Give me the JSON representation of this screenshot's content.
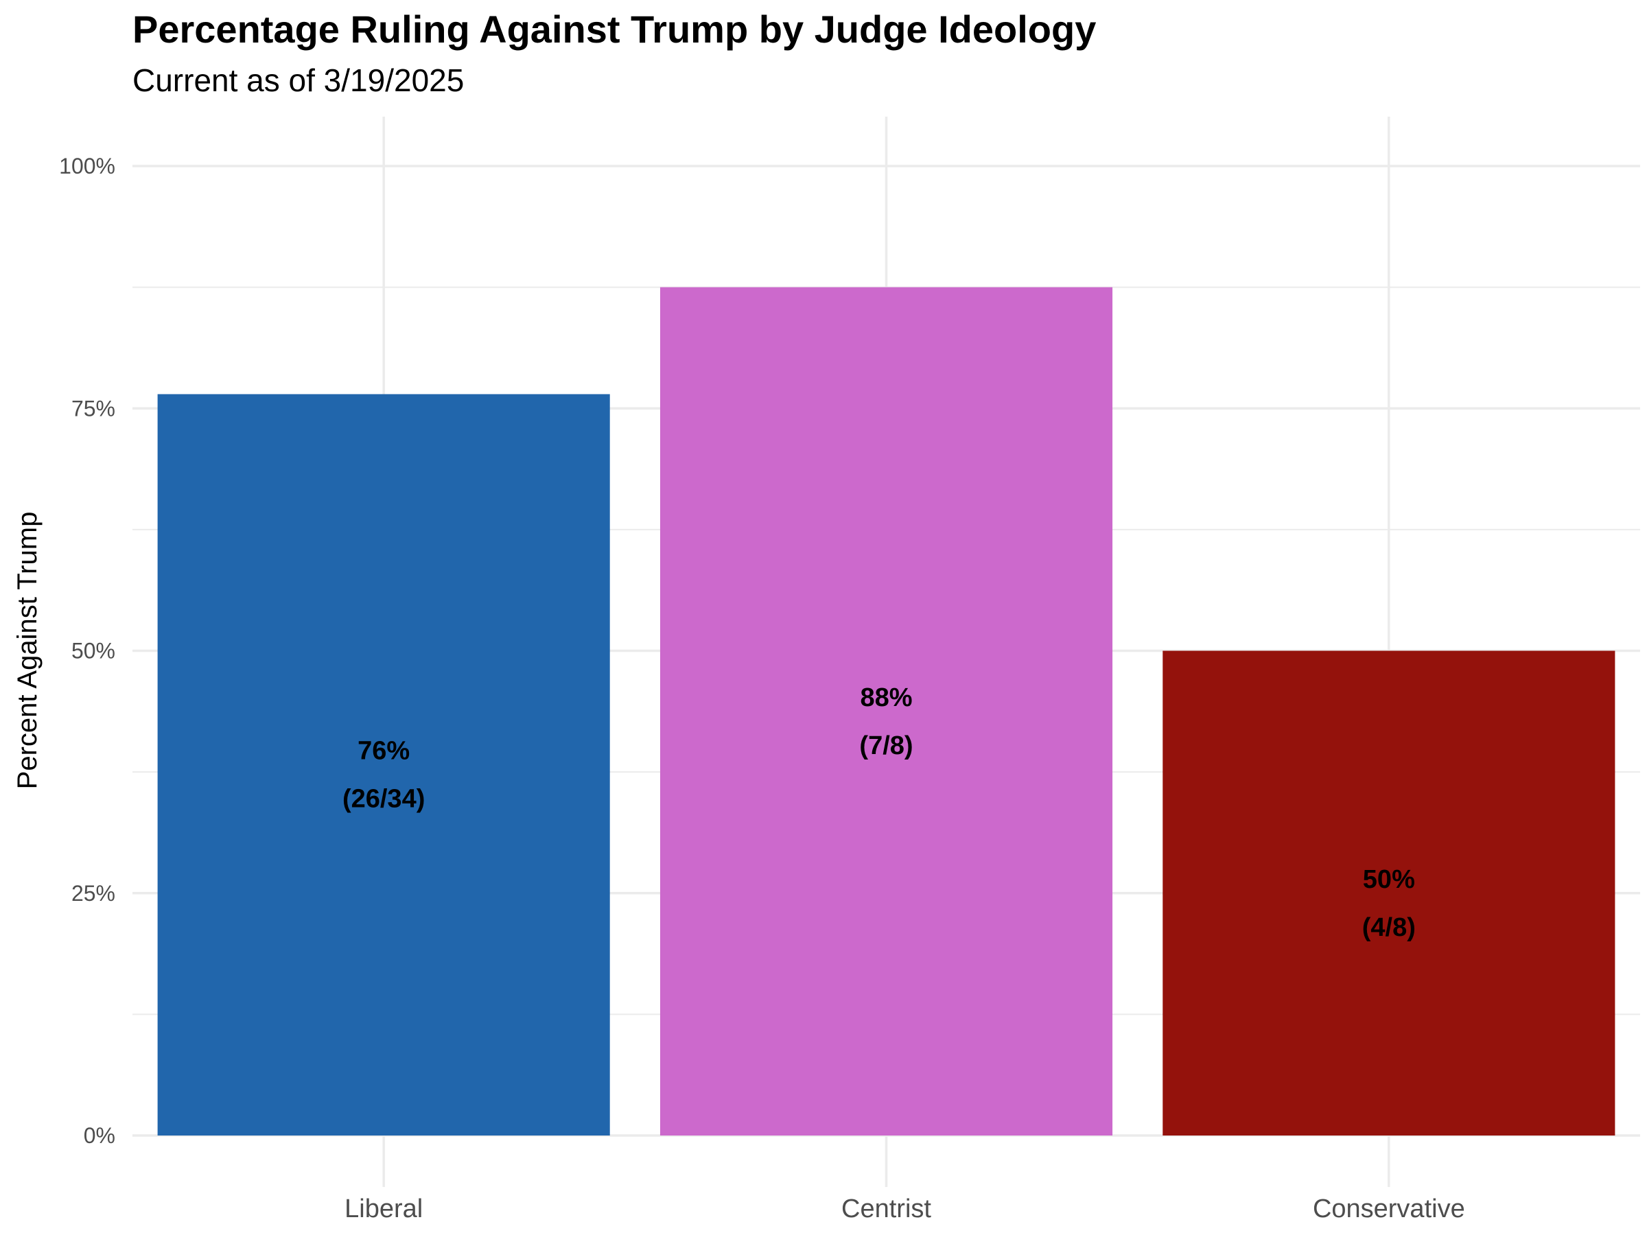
{
  "chart_data": {
    "type": "bar",
    "title": "Percentage Ruling Against Trump by Judge Ideology",
    "subtitle": "Current as of 3/19/2025",
    "xlabel": "",
    "ylabel": "Percent Against Trump",
    "categories": [
      "Liberal",
      "Centrist",
      "Conservative"
    ],
    "values": [
      76.47,
      87.5,
      50
    ],
    "labels_pct": [
      "76%",
      "88%",
      "50%"
    ],
    "labels_count": [
      "(26/34)",
      "(7/8)",
      "(4/8)"
    ],
    "colors": [
      "#2166ac",
      "#cc69cc",
      "#94120c"
    ],
    "ylim": [
      0,
      105
    ],
    "y_ticks": [
      0,
      25,
      50,
      75,
      100
    ],
    "y_tick_labels": [
      "0%",
      "25%",
      "50%",
      "75%",
      "100%"
    ],
    "grid": true,
    "legend": "none"
  }
}
